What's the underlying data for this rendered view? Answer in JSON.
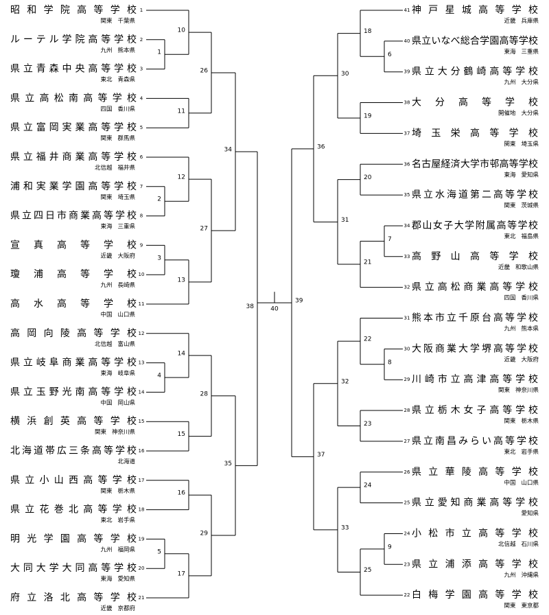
{
  "bracket": {
    "left": {
      "number": 38,
      "sides": [
        {
          "number": 34,
          "sides": [
            {
              "number": 26,
              "sides": [
                {
                  "number": 10,
                  "sides": [
                    {
                      "seed": 1,
                      "name": "昭和学院高等学校",
                      "region": "関東",
                      "prefecture": "千葉県"
                    },
                    {
                      "number": 1,
                      "sides": [
                        {
                          "seed": 2,
                          "name": "ルーテル学院高等学校",
                          "region": "九州",
                          "prefecture": "熊本県"
                        },
                        {
                          "seed": 3,
                          "name": "県立青森中央高等学校",
                          "region": "東北",
                          "prefecture": "青森県"
                        }
                      ]
                    }
                  ]
                },
                {
                  "number": 11,
                  "sides": [
                    {
                      "seed": 4,
                      "name": "県立高松南高等学校",
                      "region": "四国",
                      "prefecture": "香川県"
                    },
                    {
                      "seed": 5,
                      "name": "県立富岡実業高等学校",
                      "region": "関東",
                      "prefecture": "群馬県"
                    }
                  ]
                }
              ]
            },
            {
              "number": 27,
              "sides": [
                {
                  "number": 12,
                  "sides": [
                    {
                      "seed": 6,
                      "name": "県立福井商業高等学校",
                      "region": "北信越",
                      "prefecture": "福井県"
                    },
                    {
                      "number": 2,
                      "sides": [
                        {
                          "seed": 7,
                          "name": "浦和実業学園高等学校",
                          "region": "関東",
                          "prefecture": "埼玉県"
                        },
                        {
                          "seed": 8,
                          "name": "県立四日市商業高等学校",
                          "region": "東海",
                          "prefecture": "三重県"
                        }
                      ]
                    }
                  ]
                },
                {
                  "number": 13,
                  "sides": [
                    {
                      "number": 3,
                      "sides": [
                        {
                          "seed": 9,
                          "name": "宣真高等学校",
                          "region": "近畿",
                          "prefecture": "大阪府"
                        },
                        {
                          "seed": 10,
                          "name": "瓊浦高等学校",
                          "region": "九州",
                          "prefecture": "長崎県"
                        }
                      ]
                    },
                    {
                      "seed": 11,
                      "name": "高水高等学校",
                      "region": "中国",
                      "prefecture": "山口県"
                    }
                  ]
                }
              ]
            }
          ]
        },
        {
          "number": 35,
          "sides": [
            {
              "number": 28,
              "sides": [
                {
                  "number": 14,
                  "sides": [
                    {
                      "seed": 12,
                      "name": "高岡向陵高等学校",
                      "region": "北信越",
                      "prefecture": "富山県"
                    },
                    {
                      "number": 4,
                      "sides": [
                        {
                          "seed": 13,
                          "name": "県立岐阜商業高等学校",
                          "region": "東海",
                          "prefecture": "岐阜県"
                        },
                        {
                          "seed": 14,
                          "name": "県立玉野光南高等学校",
                          "region": "中国",
                          "prefecture": "岡山県"
                        }
                      ]
                    }
                  ]
                },
                {
                  "number": 15,
                  "sides": [
                    {
                      "seed": 15,
                      "name": "横浜創英高等学校",
                      "region": "関東",
                      "prefecture": "神奈川県"
                    },
                    {
                      "seed": 16,
                      "name": "北海道帯広三条高等学校",
                      "region": "北海道"
                    }
                  ]
                }
              ]
            },
            {
              "number": 29,
              "sides": [
                {
                  "number": 16,
                  "sides": [
                    {
                      "seed": 17,
                      "name": "県立小山西高等学校",
                      "region": "関東",
                      "prefecture": "栃木県"
                    },
                    {
                      "seed": 18,
                      "name": "県立花巻北高等学校",
                      "region": "東北",
                      "prefecture": "岩手県"
                    }
                  ]
                },
                {
                  "number": 17,
                  "sides": [
                    {
                      "number": 5,
                      "sides": [
                        {
                          "seed": 19,
                          "name": "明光学園高等学校",
                          "region": "九州",
                          "prefecture": "福岡県"
                        },
                        {
                          "seed": 20,
                          "name": "大同大学大同高等学校",
                          "region": "東海",
                          "prefecture": "愛知県"
                        }
                      ]
                    },
                    {
                      "seed": 21,
                      "name": "府立洛北高等学校",
                      "region": "近畿",
                      "prefecture": "京都府"
                    }
                  ]
                }
              ]
            }
          ]
        }
      ]
    },
    "right": {
      "number": 39,
      "sides": [
        {
          "number": 36,
          "sides": [
            {
              "number": 30,
              "sides": [
                {
                  "number": 18,
                  "sides": [
                    {
                      "seed": 41,
                      "name": "神戸星城高等学校",
                      "region": "近畿",
                      "prefecture": "兵庫県"
                    },
                    {
                      "number": 6,
                      "sides": [
                        {
                          "seed": 40,
                          "name": "県立いなべ総合学園高等学校",
                          "region": "東海",
                          "prefecture": "三重県"
                        },
                        {
                          "seed": 39,
                          "name": "県立大分鶴崎高等学校",
                          "region": "九州",
                          "prefecture": "大分県"
                        }
                      ]
                    }
                  ]
                },
                {
                  "number": 19,
                  "sides": [
                    {
                      "seed": 38,
                      "name": "大分高等学校",
                      "region": "開催地",
                      "prefecture": "大分県"
                    },
                    {
                      "seed": 37,
                      "name": "埼玉栄高等学校",
                      "region": "関東",
                      "prefecture": "埼玉県"
                    }
                  ]
                }
              ]
            },
            {
              "number": 31,
              "sides": [
                {
                  "number": 20,
                  "sides": [
                    {
                      "seed": 36,
                      "name": "名古屋経済大学市邨高等学校",
                      "region": "東海",
                      "prefecture": "愛知県"
                    },
                    {
                      "seed": 35,
                      "name": "県立水海道第二高等学校",
                      "region": "関東",
                      "prefecture": "茨城県"
                    }
                  ]
                },
                {
                  "number": 21,
                  "sides": [
                    {
                      "number": 7,
                      "sides": [
                        {
                          "seed": 34,
                          "name": "郡山女子大学附属高等学校",
                          "region": "東北",
                          "prefecture": "福島県"
                        },
                        {
                          "seed": 33,
                          "name": "高野山高等学校",
                          "region": "近畿",
                          "prefecture": "和歌山県"
                        }
                      ]
                    },
                    {
                      "seed": 32,
                      "name": "県立高松商業高等学校",
                      "region": "四国",
                      "prefecture": "香川県"
                    }
                  ]
                }
              ]
            }
          ]
        },
        {
          "number": 37,
          "sides": [
            {
              "number": 32,
              "sides": [
                {
                  "number": 22,
                  "sides": [
                    {
                      "seed": 31,
                      "name": "熊本市立千原台高等学校",
                      "region": "九州",
                      "prefecture": "熊本県"
                    },
                    {
                      "number": 8,
                      "sides": [
                        {
                          "seed": 30,
                          "name": "大阪商業大学堺高等学校",
                          "region": "近畿",
                          "prefecture": "大阪府"
                        },
                        {
                          "seed": 29,
                          "name": "川崎市立高津高等学校",
                          "region": "関東",
                          "prefecture": "神奈川県"
                        }
                      ]
                    }
                  ]
                },
                {
                  "number": 23,
                  "sides": [
                    {
                      "seed": 28,
                      "name": "県立栃木女子高等学校",
                      "region": "関東",
                      "prefecture": "栃木県"
                    },
                    {
                      "seed": 27,
                      "name": "県立南昌みらい高等学校",
                      "region": "東北",
                      "prefecture": "岩手県"
                    }
                  ]
                }
              ]
            },
            {
              "number": 33,
              "sides": [
                {
                  "number": 24,
                  "sides": [
                    {
                      "seed": 26,
                      "name": "県立華陵高等学校",
                      "region": "中国",
                      "prefecture": "山口県"
                    },
                    {
                      "seed": 25,
                      "name": "県立愛知商業高等学校",
                      "prefecture": "愛知県"
                    }
                  ]
                },
                {
                  "number": 25,
                  "sides": [
                    {
                      "number": 9,
                      "sides": [
                        {
                          "seed": 24,
                          "name": "小松市立高等学校",
                          "region": "北信越",
                          "prefecture": "石川県"
                        },
                        {
                          "seed": 23,
                          "name": "県立浦添高等学校",
                          "region": "九州",
                          "prefecture": "沖縄県"
                        }
                      ]
                    },
                    {
                      "seed": 22,
                      "name": "白梅学園高等学校",
                      "region": "関東",
                      "prefecture": "東京都"
                    }
                  ]
                }
              ]
            }
          ]
        }
      ]
    },
    "final": 40
  }
}
